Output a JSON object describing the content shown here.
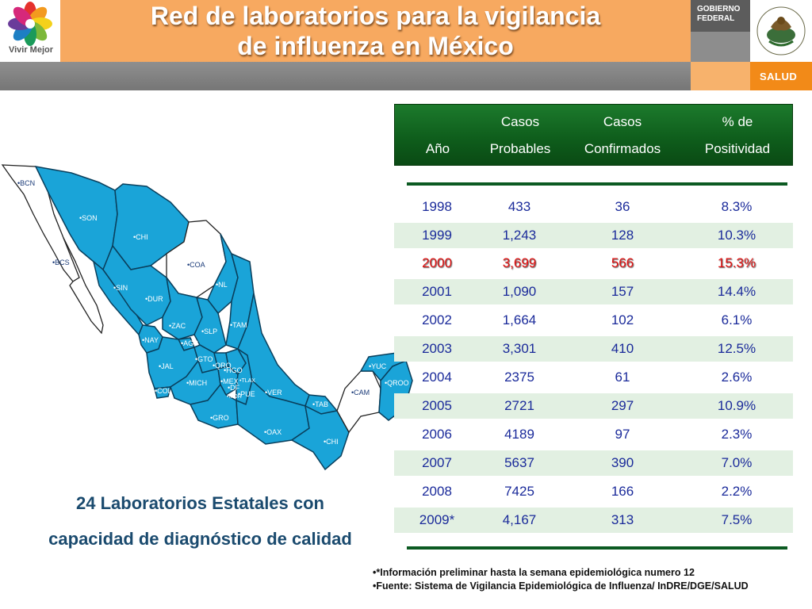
{
  "branding": {
    "logo_text": "Vivir Mejor",
    "gob_line1": "Gobierno",
    "gob_line2": "Federal",
    "salud": "SALUD"
  },
  "title": {
    "line1": "Red de laboratorios para la vigilancia",
    "line2": "de influenza en México"
  },
  "map": {
    "labels": [
      "BCN",
      "SON",
      "CHI",
      "BCS",
      "COA",
      "SIN",
      "NL",
      "DUR",
      "ZAC",
      "SLP",
      "TAM",
      "NAY",
      "AGS",
      "JAL",
      "GTO",
      "QRO",
      "HGO",
      "COL",
      "MICH",
      "MEX",
      "DF",
      "PUE",
      "VER",
      "GRO",
      "OAX",
      "TLAX",
      "MOR",
      "TAB",
      "CHI",
      "YUC",
      "QROO",
      "CAM"
    ]
  },
  "caption": {
    "line1": "24 Laboratorios Estatales con",
    "line2": "capacidad de diagnóstico de calidad"
  },
  "table": {
    "header": {
      "year": "Año",
      "prob1": "Casos",
      "prob2": "Probables",
      "conf1": "Casos",
      "conf2": "Confirmados",
      "pos1": "% de",
      "pos2": "Positividad"
    },
    "rows": [
      {
        "year": "1998",
        "probables": "433",
        "confirmados": "36",
        "positividad": "8.3%"
      },
      {
        "year": "1999",
        "probables": "1,243",
        "confirmados": "128",
        "positividad": "10.3%"
      },
      {
        "year": "2000",
        "probables": "3,699",
        "confirmados": "566",
        "positividad": "15.3%"
      },
      {
        "year": "2001",
        "probables": "1,090",
        "confirmados": "157",
        "positividad": "14.4%"
      },
      {
        "year": "2002",
        "probables": "1,664",
        "confirmados": "102",
        "positividad": "6.1%"
      },
      {
        "year": "2003",
        "probables": "3,301",
        "confirmados": "410",
        "positividad": "12.5%"
      },
      {
        "year": "2004",
        "probables": "2375",
        "confirmados": "61",
        "positividad": "2.6%"
      },
      {
        "year": "2005",
        "probables": "2721",
        "confirmados": "297",
        "positividad": "10.9%"
      },
      {
        "year": "2006",
        "probables": "4189",
        "confirmados": "97",
        "positividad": "2.3%"
      },
      {
        "year": "2007",
        "probables": "5637",
        "confirmados": "390",
        "positividad": "7.0%"
      },
      {
        "year": "2008",
        "probables": "7425",
        "confirmados": "166",
        "positividad": "2.2%"
      },
      {
        "year": "2009*",
        "probables": "4,167",
        "confirmados": "313",
        "positividad": "7.5%"
      }
    ]
  },
  "notes": {
    "note1": "•*Información preliminar hasta la semana epidemiológica numero 12",
    "note2": "•Fuente: Sistema de Vigilancia Epidemiológica de Influenza/ InDRE/DGE/SALUD"
  },
  "colors": {
    "title_band": "#f7a960",
    "table_header": "#0e5c1b",
    "highlight": "#e01010",
    "map_fill": "#1aa4d8"
  }
}
